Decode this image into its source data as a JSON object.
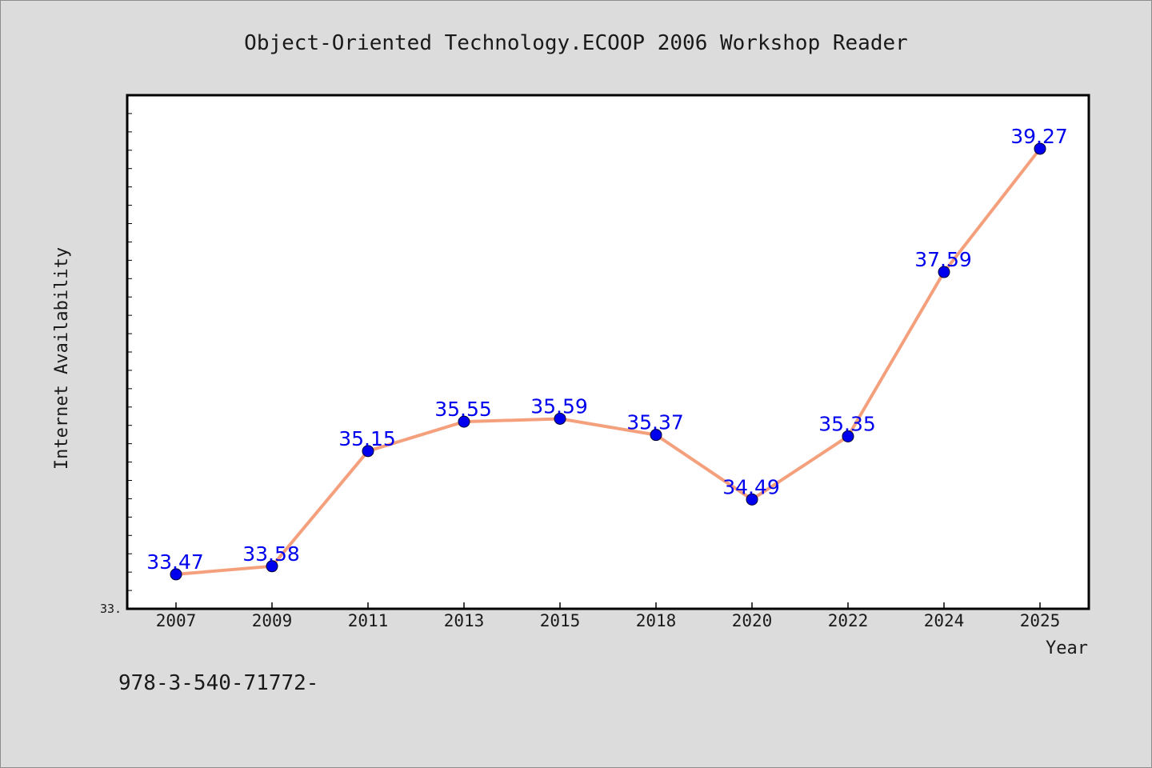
{
  "chart_data": {
    "type": "line",
    "title": "Object-Oriented Technology.ECOOP 2006 Workshop Reader",
    "xlabel": "Year",
    "ylabel": "Internet Availability",
    "categories": [
      "2007",
      "2009",
      "2011",
      "2013",
      "2015",
      "2018",
      "2020",
      "2022",
      "2024",
      "2025"
    ],
    "series": [
      {
        "values": [
          33.47,
          33.58,
          35.15,
          35.55,
          35.59,
          35.37,
          34.49,
          35.35,
          37.59,
          39.27
        ]
      }
    ],
    "data_labels": [
      "33.47",
      "33.58",
      "35.15",
      "35.55",
      "35.59",
      "35.37",
      "34.49",
      "35.35",
      "37.59",
      "39.27"
    ],
    "ylim": [
      33.0,
      40.0
    ],
    "ytick_labels": [
      "33."
    ],
    "grid": false,
    "legend": "none",
    "colors": {
      "line": "#f4a07c",
      "marker": "#0000ee",
      "label": "#0000ee",
      "background": "#dcdcdc",
      "plot_area": "#ffffff"
    }
  },
  "footer": {
    "text": "978-3-540-71772-"
  }
}
